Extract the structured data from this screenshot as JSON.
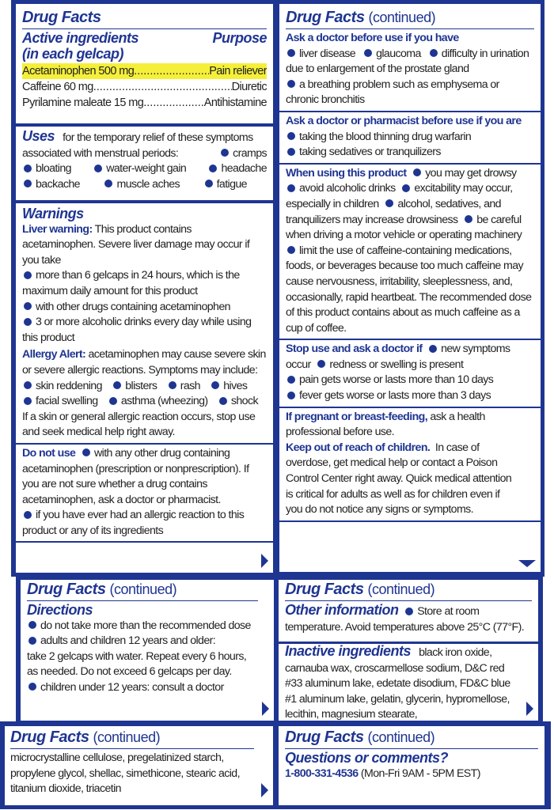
{
  "colors": {
    "brand": "#1f3592",
    "highlight": "#f5ef3a"
  },
  "label_title": "Drug Facts",
  "continued": "(continued)",
  "active": {
    "heading": "Active ingredients",
    "sub": "(in each gelcap)",
    "purpose_heading": "Purpose",
    "ingredients": [
      {
        "name": "Acetaminophen 500 mg",
        "purpose": "Pain reliever"
      },
      {
        "name": "Caffeine 60 mg",
        "purpose": "Diuretic"
      },
      {
        "name": "Pyrilamine maleate 15 mg",
        "purpose": "Antihistamine"
      }
    ]
  },
  "uses": {
    "heading": "Uses",
    "intro_1": "for the temporary relief of these symptoms",
    "intro_2": "associated with menstrual periods:",
    "items": [
      "cramps",
      "bloating",
      "water-weight gain",
      "headache",
      "backache",
      "muscle aches",
      "fatigue"
    ]
  },
  "warnings": {
    "heading": "Warnings",
    "liver_label": "Liver warning:",
    "liver_text": "This product contains acetaminophen.  Severe liver damage may occur if you take",
    "liver_items": [
      "more than 6 gelcaps in 24 hours, which is the maximum daily amount for this product",
      "with other drugs containing acetaminophen",
      "3 or more alcoholic drinks every day while using this product"
    ],
    "allergy_label": "Allergy Alert:",
    "allergy_text": "acetaminophen may cause severe skin or severe allergic reactions.  Symptoms may include:",
    "allergy_items": [
      "skin reddening",
      "blisters",
      "rash",
      "hives",
      "facial swelling",
      "asthma (wheezing)",
      "shock"
    ],
    "allergy_after": "If a skin or general allergic reaction occurs, stop use and seek medical help right away.",
    "donot_label": "Do not use",
    "donot_items": [
      "with any other drug containing acetaminophen (prescription or nonprescription). If you are not sure whether a drug contains acetaminophen, ask a doctor or pharmacist.",
      "if you have ever had an allergic reaction to this product or any of its ingredients"
    ]
  },
  "ask_doctor": {
    "heading": "Ask a doctor before use if you have",
    "items": [
      "liver disease",
      "glaucoma",
      "difficulty in urination due to enlargement of the prostate gland",
      "a breathing problem such as emphysema or chronic bronchitis"
    ]
  },
  "ask_pharmacist": {
    "heading": "Ask a doctor or pharmacist before use if you are",
    "items": [
      "taking the blood thinning drug warfarin",
      "taking sedatives or tranquilizers"
    ]
  },
  "when_using": {
    "heading": "When using this product",
    "items": [
      "you may get drowsy",
      "avoid alcoholic drinks",
      "excitability may occur, especially in children",
      "alcohol, sedatives, and tranquilizers may increase drowsiness",
      "be careful when driving a motor vehicle or operating machinery",
      "limit the use of caffeine-containing medications, foods, or beverages because too much caffeine may cause nervousness, irritability, sleeplessness, and, occasionally, rapid heartbeat. The recommended dose of this product contains about as much caffeine as a cup of coffee."
    ]
  },
  "stop_use": {
    "heading": "Stop use and ask a doctor if",
    "items": [
      "new symptoms occur",
      "redness or swelling is present",
      "pain gets worse or lasts more than 10 days",
      "fever gets worse or lasts more than 3 days"
    ]
  },
  "pregnant": {
    "label": "If pregnant or breast-feeding,",
    "text": "ask a health professional before use."
  },
  "keep_out": {
    "label": "Keep out of reach of children.",
    "text": "In case of overdose, get medical help or contact a Poison Control Center right away.  Quick medical attention is critical for adults as well as for children even if you do not notice any signs or symptoms."
  },
  "directions": {
    "heading": "Directions",
    "items": [
      "do not take more than the recommended dose",
      "adults and children 12 years and older:"
    ],
    "text": "take 2 gelcaps with water.  Repeat every 6 hours, as needed.  Do not exceed 6 gelcaps per day.",
    "item_last": "children under 12 years: consult a doctor"
  },
  "other_info": {
    "heading": "Other information",
    "item": "Store at room temperature. Avoid temperatures above 25°C (77°F)."
  },
  "inactive": {
    "heading": "Inactive ingredients",
    "text_1": "black iron oxide, carnauba wax, croscarmellose sodium, D&C red #33 aluminum lake, edetate disodium, FD&C blue #1 aluminum lake, gelatin, glycerin, hypromellose, lecithin, magnesium stearate,",
    "text_2": "microcrystalline cellulose, pregelatinized starch, propylene glycol, shellac, simethicone, stearic acid, titanium dioxide, triacetin"
  },
  "questions": {
    "heading": "Questions or comments?",
    "phone": "1-800-331-4536",
    "hours": "(Mon-Fri 9AM - 5PM EST)"
  }
}
